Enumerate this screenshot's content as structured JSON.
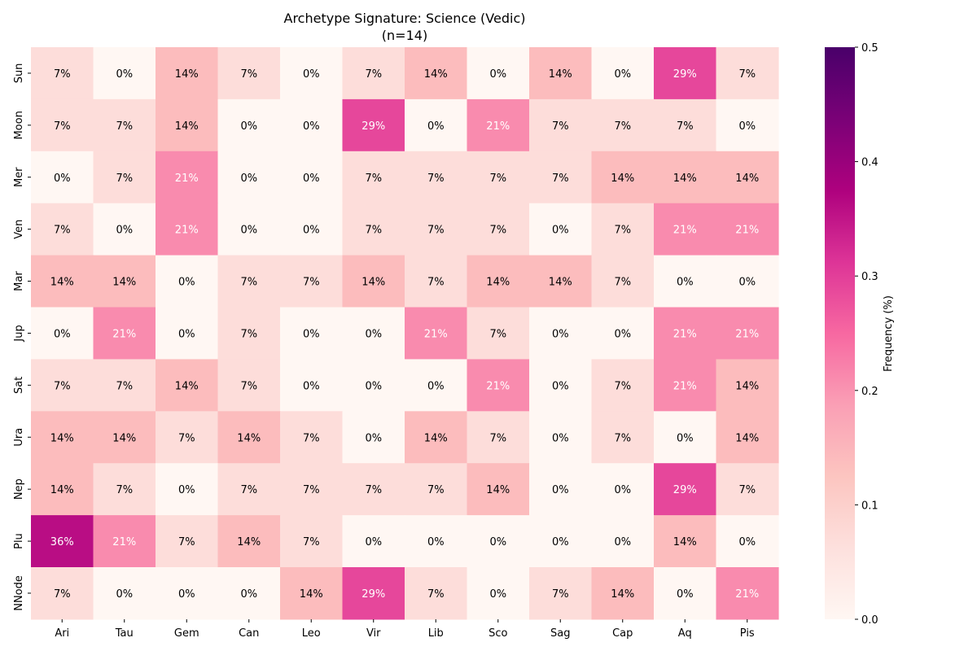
{
  "chart_data": {
    "type": "heatmap",
    "title": "Archetype Signature: Science (Vedic)",
    "subtitle": "(n=14)",
    "xlabel": "",
    "ylabel": "",
    "columns": [
      "Ari",
      "Tau",
      "Gem",
      "Can",
      "Leo",
      "Vir",
      "Lib",
      "Sco",
      "Sag",
      "Cap",
      "Aq",
      "Pis"
    ],
    "rows": [
      "Sun",
      "Moon",
      "Mer",
      "Ven",
      "Mar",
      "Jup",
      "Sat",
      "Ura",
      "Nep",
      "Plu",
      "NNode"
    ],
    "values": [
      [
        0.07,
        0.0,
        0.14,
        0.07,
        0.0,
        0.07,
        0.14,
        0.0,
        0.14,
        0.0,
        0.29,
        0.07
      ],
      [
        0.07,
        0.07,
        0.14,
        0.0,
        0.0,
        0.29,
        0.0,
        0.21,
        0.07,
        0.07,
        0.07,
        0.0
      ],
      [
        0.0,
        0.07,
        0.21,
        0.0,
        0.0,
        0.07,
        0.07,
        0.07,
        0.07,
        0.14,
        0.14,
        0.14
      ],
      [
        0.07,
        0.0,
        0.21,
        0.0,
        0.0,
        0.07,
        0.07,
        0.07,
        0.0,
        0.07,
        0.21,
        0.21
      ],
      [
        0.14,
        0.14,
        0.0,
        0.07,
        0.07,
        0.14,
        0.07,
        0.14,
        0.14,
        0.07,
        0.0,
        0.0
      ],
      [
        0.0,
        0.21,
        0.0,
        0.07,
        0.0,
        0.0,
        0.21,
        0.07,
        0.0,
        0.0,
        0.21,
        0.21
      ],
      [
        0.07,
        0.07,
        0.14,
        0.07,
        0.0,
        0.0,
        0.0,
        0.21,
        0.0,
        0.07,
        0.21,
        0.14
      ],
      [
        0.14,
        0.14,
        0.07,
        0.14,
        0.07,
        0.0,
        0.14,
        0.07,
        0.0,
        0.07,
        0.0,
        0.14
      ],
      [
        0.14,
        0.07,
        0.0,
        0.07,
        0.07,
        0.07,
        0.07,
        0.14,
        0.0,
        0.0,
        0.29,
        0.07
      ],
      [
        0.36,
        0.21,
        0.07,
        0.14,
        0.07,
        0.0,
        0.0,
        0.0,
        0.0,
        0.0,
        0.14,
        0.0
      ],
      [
        0.07,
        0.0,
        0.0,
        0.0,
        0.14,
        0.29,
        0.07,
        0.0,
        0.07,
        0.14,
        0.0,
        0.21
      ]
    ],
    "labels": [
      [
        "7%",
        "0%",
        "14%",
        "7%",
        "0%",
        "7%",
        "14%",
        "0%",
        "14%",
        "0%",
        "29%",
        "7%"
      ],
      [
        "7%",
        "7%",
        "14%",
        "0%",
        "0%",
        "29%",
        "0%",
        "21%",
        "7%",
        "7%",
        "7%",
        "0%"
      ],
      [
        "0%",
        "7%",
        "21%",
        "0%",
        "0%",
        "7%",
        "7%",
        "7%",
        "7%",
        "14%",
        "14%",
        "14%"
      ],
      [
        "7%",
        "0%",
        "21%",
        "0%",
        "0%",
        "7%",
        "7%",
        "7%",
        "0%",
        "7%",
        "21%",
        "21%"
      ],
      [
        "14%",
        "14%",
        "0%",
        "7%",
        "7%",
        "14%",
        "7%",
        "14%",
        "14%",
        "7%",
        "0%",
        "0%"
      ],
      [
        "0%",
        "21%",
        "0%",
        "7%",
        "0%",
        "0%",
        "21%",
        "7%",
        "0%",
        "0%",
        "21%",
        "21%"
      ],
      [
        "7%",
        "7%",
        "14%",
        "7%",
        "0%",
        "0%",
        "0%",
        "21%",
        "0%",
        "7%",
        "21%",
        "14%"
      ],
      [
        "14%",
        "14%",
        "7%",
        "14%",
        "7%",
        "0%",
        "14%",
        "7%",
        "0%",
        "7%",
        "0%",
        "14%"
      ],
      [
        "14%",
        "7%",
        "0%",
        "7%",
        "7%",
        "7%",
        "7%",
        "14%",
        "0%",
        "0%",
        "29%",
        "7%"
      ],
      [
        "36%",
        "21%",
        "7%",
        "14%",
        "7%",
        "0%",
        "0%",
        "0%",
        "0%",
        "0%",
        "14%",
        "0%"
      ],
      [
        "7%",
        "0%",
        "0%",
        "0%",
        "14%",
        "29%",
        "7%",
        "0%",
        "7%",
        "14%",
        "0%",
        "21%"
      ]
    ],
    "colorbar": {
      "label": "Frequency (%)",
      "range": [
        0,
        0.5
      ],
      "ticks": [
        "0.0",
        "0.1",
        "0.2",
        "0.3",
        "0.4",
        "0.5"
      ],
      "colormap": "RdPu"
    }
  }
}
